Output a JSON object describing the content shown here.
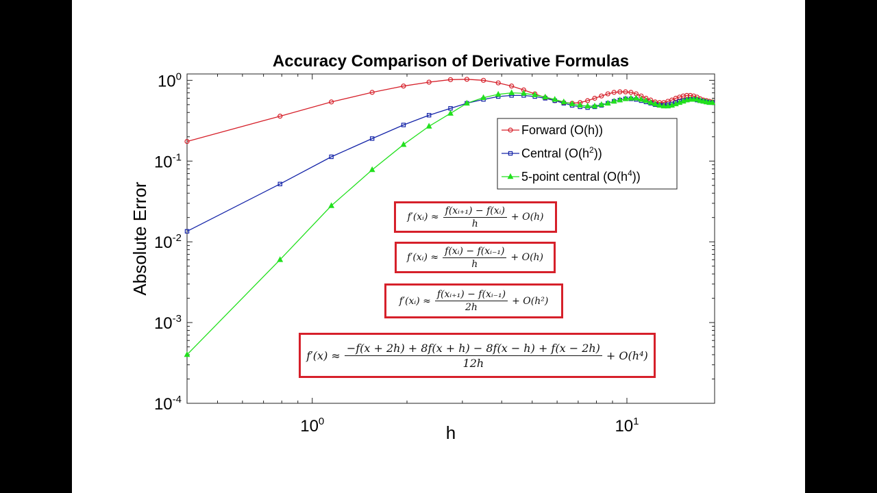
{
  "chart_data": {
    "type": "line",
    "title": "Accuracy Comparison of Derivative Formulas",
    "xlabel": "h",
    "ylabel": "Absolute Error",
    "xscale": "log",
    "yscale": "log",
    "xlim": [
      0.4,
      19
    ],
    "ylim": [
      0.0001,
      1.2
    ],
    "xticks": [
      {
        "value": 1,
        "base": "10",
        "exp": "0"
      },
      {
        "value": 10,
        "base": "10",
        "exp": "1"
      }
    ],
    "yticks": [
      {
        "value": 1,
        "base": "10",
        "exp": "0"
      },
      {
        "value": 0.1,
        "base": "10",
        "exp": "-1"
      },
      {
        "value": 0.01,
        "base": "10",
        "exp": "-2"
      },
      {
        "value": 0.001,
        "base": "10",
        "exp": "-3"
      },
      {
        "value": 0.0001,
        "base": "10",
        "exp": "-4"
      }
    ],
    "grid": false,
    "legend_position": "inside-right",
    "series": [
      {
        "name": "Forward (O(h))",
        "legend_base": "Forward (O(h))",
        "legend_exp": "",
        "legend_tail": "",
        "color": "#d6202a",
        "marker": "circle",
        "points": [
          [
            0.4,
            0.175
          ],
          [
            0.79,
            0.36
          ],
          [
            1.15,
            0.54
          ],
          [
            1.55,
            0.71
          ],
          [
            1.95,
            0.85
          ],
          [
            2.35,
            0.95
          ],
          [
            2.75,
            1.02
          ],
          [
            3.1,
            1.03
          ],
          [
            3.5,
            1.0
          ],
          [
            3.9,
            0.93
          ],
          [
            4.3,
            0.85
          ],
          [
            4.7,
            0.76
          ],
          [
            5.1,
            0.68
          ],
          [
            5.5,
            0.61
          ],
          [
            5.9,
            0.56
          ],
          [
            6.3,
            0.53
          ],
          [
            6.7,
            0.52
          ],
          [
            7.1,
            0.53
          ],
          [
            7.5,
            0.56
          ],
          [
            7.9,
            0.6
          ],
          [
            8.3,
            0.64
          ],
          [
            8.7,
            0.68
          ],
          [
            9.1,
            0.71
          ],
          [
            9.5,
            0.72
          ],
          [
            9.9,
            0.72
          ],
          [
            10.3,
            0.71
          ],
          [
            10.7,
            0.68
          ],
          [
            11.1,
            0.64
          ],
          [
            11.5,
            0.6
          ],
          [
            11.9,
            0.57
          ],
          [
            12.3,
            0.54
          ],
          [
            12.7,
            0.53
          ],
          [
            13.1,
            0.53
          ],
          [
            13.5,
            0.55
          ],
          [
            13.9,
            0.57
          ],
          [
            14.3,
            0.6
          ],
          [
            14.7,
            0.62
          ],
          [
            15.1,
            0.64
          ],
          [
            15.5,
            0.65
          ],
          [
            15.9,
            0.65
          ],
          [
            16.3,
            0.64
          ],
          [
            16.7,
            0.62
          ],
          [
            17.1,
            0.59
          ],
          [
            17.5,
            0.57
          ],
          [
            17.9,
            0.56
          ],
          [
            18.3,
            0.55
          ],
          [
            18.7,
            0.54
          ]
        ]
      },
      {
        "name": "Central (O(h^2))",
        "legend_base": "Central (O(h",
        "legend_exp": "2",
        "legend_tail": "))",
        "color": "#1424a8",
        "marker": "square",
        "points": [
          [
            0.4,
            0.0135
          ],
          [
            0.79,
            0.052
          ],
          [
            1.15,
            0.113
          ],
          [
            1.55,
            0.19
          ],
          [
            1.95,
            0.28
          ],
          [
            2.35,
            0.37
          ],
          [
            2.75,
            0.45
          ],
          [
            3.1,
            0.52
          ],
          [
            3.5,
            0.58
          ],
          [
            3.9,
            0.63
          ],
          [
            4.3,
            0.65
          ],
          [
            4.7,
            0.65
          ],
          [
            5.1,
            0.63
          ],
          [
            5.5,
            0.6
          ],
          [
            5.9,
            0.56
          ],
          [
            6.3,
            0.52
          ],
          [
            6.7,
            0.49
          ],
          [
            7.1,
            0.47
          ],
          [
            7.5,
            0.46
          ],
          [
            7.9,
            0.47
          ],
          [
            8.3,
            0.49
          ],
          [
            8.7,
            0.52
          ],
          [
            9.1,
            0.55
          ],
          [
            9.5,
            0.57
          ],
          [
            9.9,
            0.59
          ],
          [
            10.3,
            0.59
          ],
          [
            10.7,
            0.58
          ],
          [
            11.1,
            0.56
          ],
          [
            11.5,
            0.54
          ],
          [
            11.9,
            0.52
          ],
          [
            12.3,
            0.5
          ],
          [
            12.7,
            0.49
          ],
          [
            13.1,
            0.49
          ],
          [
            13.5,
            0.5
          ],
          [
            13.9,
            0.51
          ],
          [
            14.3,
            0.53
          ],
          [
            14.7,
            0.55
          ],
          [
            15.1,
            0.56
          ],
          [
            15.5,
            0.57
          ],
          [
            15.9,
            0.58
          ],
          [
            16.3,
            0.58
          ],
          [
            16.7,
            0.57
          ],
          [
            17.1,
            0.56
          ],
          [
            17.5,
            0.55
          ],
          [
            17.9,
            0.54
          ],
          [
            18.3,
            0.53
          ],
          [
            18.7,
            0.53
          ]
        ]
      },
      {
        "name": "5-point central (O(h^4))",
        "legend_base": "5-point central (O(h",
        "legend_exp": "4",
        "legend_tail": "))",
        "color": "#22e01e",
        "marker": "triangle",
        "points": [
          [
            0.4,
            0.0004
          ],
          [
            0.79,
            0.006
          ],
          [
            1.15,
            0.028
          ],
          [
            1.55,
            0.078
          ],
          [
            1.95,
            0.16
          ],
          [
            2.35,
            0.27
          ],
          [
            2.75,
            0.39
          ],
          [
            3.1,
            0.52
          ],
          [
            3.5,
            0.61
          ],
          [
            3.9,
            0.67
          ],
          [
            4.3,
            0.7
          ],
          [
            4.7,
            0.69
          ],
          [
            5.1,
            0.66
          ],
          [
            5.5,
            0.62
          ],
          [
            5.9,
            0.58
          ],
          [
            6.3,
            0.54
          ],
          [
            6.7,
            0.51
          ],
          [
            7.1,
            0.49
          ],
          [
            7.5,
            0.48
          ],
          [
            7.9,
            0.48
          ],
          [
            8.3,
            0.5
          ],
          [
            8.7,
            0.52
          ],
          [
            9.1,
            0.55
          ],
          [
            9.5,
            0.57
          ],
          [
            9.9,
            0.59
          ],
          [
            10.3,
            0.6
          ],
          [
            10.7,
            0.6
          ],
          [
            11.1,
            0.58
          ],
          [
            11.5,
            0.56
          ],
          [
            11.9,
            0.53
          ],
          [
            12.3,
            0.51
          ],
          [
            12.7,
            0.49
          ],
          [
            13.1,
            0.48
          ],
          [
            13.5,
            0.48
          ],
          [
            13.9,
            0.49
          ],
          [
            14.3,
            0.51
          ],
          [
            14.7,
            0.53
          ],
          [
            15.1,
            0.55
          ],
          [
            15.5,
            0.57
          ],
          [
            15.9,
            0.58
          ],
          [
            16.3,
            0.58
          ],
          [
            16.7,
            0.58
          ],
          [
            17.1,
            0.56
          ],
          [
            17.5,
            0.55
          ],
          [
            17.9,
            0.54
          ],
          [
            18.3,
            0.53
          ],
          [
            18.7,
            0.53
          ]
        ]
      }
    ]
  },
  "equations": {
    "forward": {
      "lhs": "f′(xᵢ) ≈",
      "num": "f(xᵢ₊₁) − f(xᵢ)",
      "den": "h",
      "rhs": "+ O(h)"
    },
    "backward": {
      "lhs": "f′(xᵢ) ≈",
      "num": "f(xᵢ) − f(xᵢ₋₁)",
      "den": "h",
      "rhs": "+ O(h)"
    },
    "central": {
      "lhs": "f′(xᵢ) ≈",
      "num": "f(xᵢ₊₁) − f(xᵢ₋₁)",
      "den": "2h",
      "rhs": "+ O(h²)"
    },
    "five_point": {
      "lhs": "f′(x) ≈",
      "num": "−f(x + 2h) + 8f(x + h) − 8f(x − h) + f(x − 2h)",
      "den": "12h",
      "rhs": "+ O(h⁴)"
    }
  }
}
